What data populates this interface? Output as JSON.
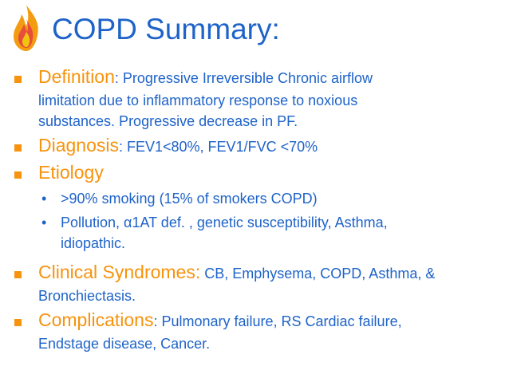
{
  "slide": {
    "title": "COPD Summary:",
    "items": [
      {
        "lead": "Definition",
        "lines": [
          ": Progressive Irreversible Chronic airflow",
          "limitation due to inflammatory response to noxious",
          "substances. Progressive decrease in PF."
        ]
      },
      {
        "lead": "Diagnosis",
        "lines": [
          ": FEV1<80%, FEV1/FVC <70%"
        ]
      },
      {
        "lead": "Etiology",
        "sub": [
          {
            "lines": [
              ">90% smoking (15% of smokers COPD)"
            ]
          },
          {
            "lines": [
              "Pollution, α1AT def. , genetic susceptibility, Asthma,",
              "idiopathic."
            ]
          }
        ]
      },
      {
        "lead": "Clinical Syndromes:",
        "lines": [
          " CB, Emphysema, COPD, Asthma, &",
          "Bronchiectasis."
        ]
      },
      {
        "lead": "Complications",
        "lines": [
          ": Pulmonary failure, RS Cardiac failure,",
          "Endstage disease, Cancer."
        ]
      }
    ]
  },
  "colors": {
    "title": "#1e63c9",
    "accent": "#f7930d",
    "text": "#1e63c9"
  },
  "icons": {
    "logo": "flame-icon",
    "bullet": "square-bullet-icon",
    "sub_bullet": "dot-bullet-icon"
  }
}
